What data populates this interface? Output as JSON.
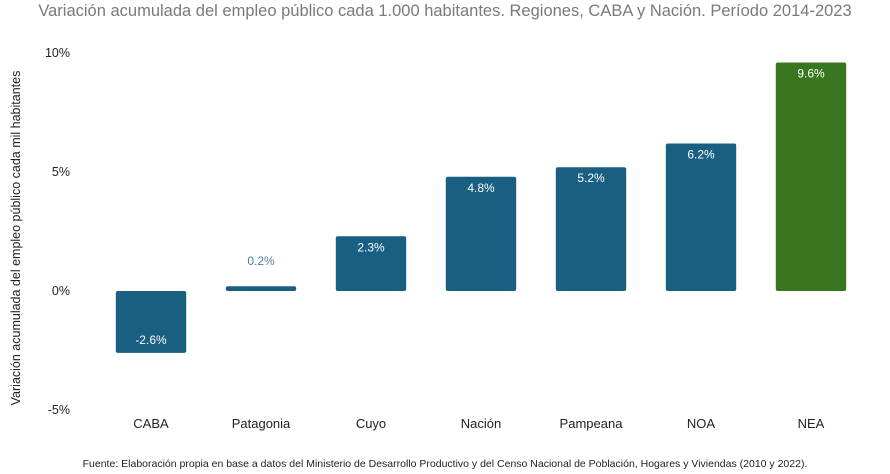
{
  "chart_data": {
    "type": "bar",
    "title": "Variación acumulada del empleo público cada 1.000 habitantes. Regiones, CABA y Nación. Período 2014-2023",
    "xlabel": "",
    "ylabel": "Variación acumulada del empleo público cada mil habitantes",
    "categories": [
      "CABA",
      "Patagonia",
      "Cuyo",
      "Nación",
      "Pampeana",
      "NOA",
      "NEA"
    ],
    "values": [
      -2.6,
      0.2,
      2.3,
      4.8,
      5.2,
      6.2,
      9.6
    ],
    "value_labels": [
      "-2.6%",
      "0.2%",
      "2.3%",
      "4.8%",
      "5.2%",
      "6.2%",
      "9.6%"
    ],
    "ylim": [
      -5,
      10
    ],
    "yticks": [
      -5,
      0,
      5,
      10
    ],
    "ytick_labels": [
      "-5%",
      "0%",
      "5%",
      "10%"
    ],
    "bar_color": "#185f82",
    "highlight_category": "NEA",
    "highlight_color": "#37751e",
    "label_color_inside": "#ffffff",
    "label_color_outside": "#4a7fa0",
    "grid": false,
    "source": "Fuente: Elaboración propia en base a datos del Ministerio de Desarrollo Productivo y del Censo Nacional de Población, Hogares y Viviendas (2010 y 2022)."
  }
}
